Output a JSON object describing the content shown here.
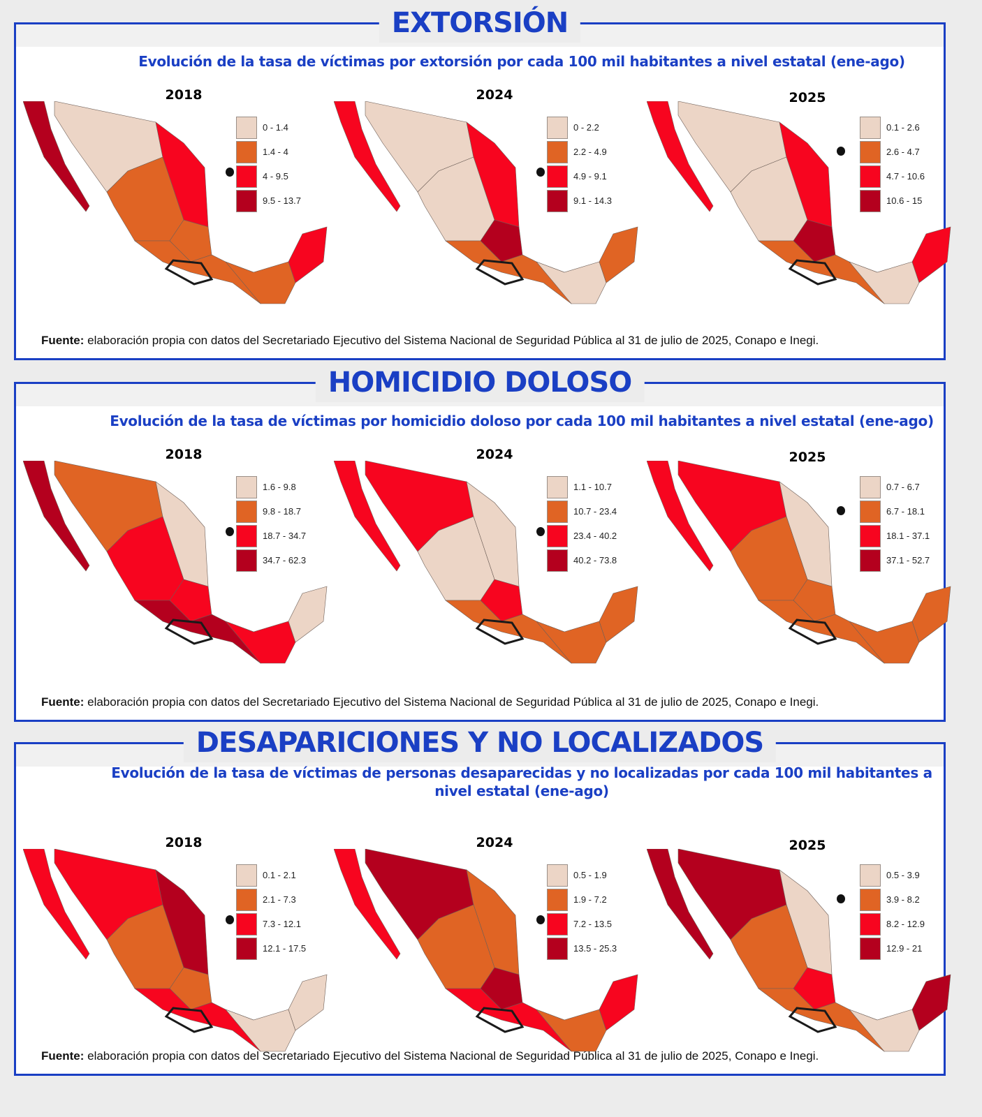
{
  "colors": {
    "frame": "#1a3fc4",
    "class_colors": [
      "#ecd5c6",
      "#e06424",
      "#f7051f",
      "#b4001e"
    ],
    "highlight_outline": "#1a1a1a"
  },
  "sections": [
    {
      "title": "EXTORSIÓN",
      "subtitle": "Evolución de la tasa de víctimas por extorsión por cada 100 mil habitantes a nivel estatal (ene-ago)",
      "maps": [
        {
          "year": "2018",
          "legend": [
            "0 - 1.4",
            "1.4 - 4",
            "4 - 9.5",
            "9.5 - 13.7"
          ]
        },
        {
          "year": "2024",
          "legend": [
            "0 - 2.2",
            "2.2 - 4.9",
            "4.9 - 9.1",
            "9.1 - 14.3"
          ]
        },
        {
          "year": "2025",
          "legend": [
            "0.1 - 2.6",
            "2.6 - 4.7",
            "4.7 - 10.6",
            "10.6 - 15"
          ]
        }
      ],
      "source_label": "Fuente:",
      "source_text": " elaboración propia con datos del Secretariado Ejecutivo del Sistema Nacional de Seguridad Pública al 31 de julio de 2025, Conapo e Inegi."
    },
    {
      "title": "HOMICIDIO DOLOSO",
      "subtitle": "Evolución de la tasa de víctimas por homicidio doloso por cada 100 mil habitantes a nivel estatal (ene-ago)",
      "maps": [
        {
          "year": "2018",
          "legend": [
            "1.6 - 9.8",
            "9.8 - 18.7",
            "18.7 - 34.7",
            "34.7 - 62.3"
          ]
        },
        {
          "year": "2024",
          "legend": [
            "1.1 - 10.7",
            "10.7 - 23.4",
            "23.4 - 40.2",
            "40.2 - 73.8"
          ]
        },
        {
          "year": "2025",
          "legend": [
            "0.7 - 6.7",
            "6.7 - 18.1",
            "18.1 - 37.1",
            "37.1 - 52.7"
          ]
        }
      ],
      "source_label": "Fuente:",
      "source_text": " elaboración propia con datos del Secretariado Ejecutivo del Sistema Nacional de Seguridad Pública al 31 de julio de 2025, Conapo e Inegi."
    },
    {
      "title": "DESAPARICIONES Y NO LOCALIZADOS",
      "subtitle": "Evolución de la tasa de víctimas de personas desaparecidas y no localizadas por cada 100 mil habitantes a nivel estatal (ene-ago)",
      "maps": [
        {
          "year": "2018",
          "legend": [
            "0.1 - 2.1",
            "2.1 - 7.3",
            "7.3 - 12.1",
            "12.1 - 17.5"
          ]
        },
        {
          "year": "2024",
          "legend": [
            "0.5 - 1.9",
            "1.9 - 7.2",
            "7.2 - 13.5",
            "13.5 - 25.3"
          ]
        },
        {
          "year": "2025",
          "legend": [
            "0.5 - 3.9",
            "3.9 - 8.2",
            "8.2 - 12.9",
            "12.9 - 21"
          ]
        }
      ],
      "source_label": "Fuente:",
      "source_text": " elaboración propia con datos del Secretariado Ejecutivo del Sistema Nacional de Seguridad Pública al 31 de julio de 2025, Conapo e Inegi."
    }
  ]
}
